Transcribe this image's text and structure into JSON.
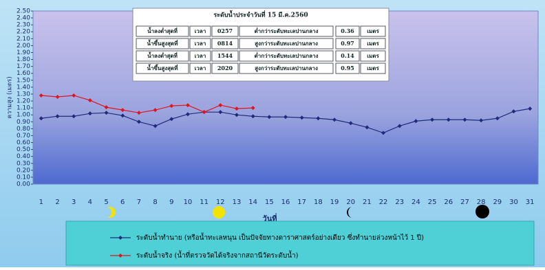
{
  "chart_data": {
    "type": "line",
    "y_label": "ความสูง (เมตร)",
    "x_label": "วันที่",
    "categories": [
      "1",
      "2",
      "3",
      "4",
      "5",
      "6",
      "7",
      "8",
      "9",
      "10",
      "11",
      "12",
      "13",
      "14",
      "15",
      "16",
      "17",
      "18",
      "19",
      "20",
      "21",
      "22",
      "23",
      "24",
      "25",
      "26",
      "27",
      "28",
      "29",
      "30",
      "31"
    ],
    "series": [
      {
        "name": "ระดับน้ำทำนาย (หรือน้ำทะเลหนุน เป็นปัจจัยทางดาราศาสตร์อย่างเดียว ซึ่งทำนายล่วงหน้าไว้ 1 ปี)",
        "color": "#1f2a7a",
        "values": [
          0.95,
          0.98,
          0.98,
          1.02,
          1.03,
          0.99,
          0.9,
          0.84,
          0.94,
          1.01,
          1.04,
          1.04,
          1.0,
          0.98,
          0.97,
          0.97,
          0.96,
          0.95,
          0.93,
          0.88,
          0.82,
          0.74,
          0.84,
          0.91,
          0.93,
          0.93,
          0.93,
          0.92,
          0.95,
          1.05,
          1.09
        ]
      },
      {
        "name": "ระดับน้ำจริง (น้ำที่ตรวจวัดได้จริงจากสถานีวัดระดับน้ำ)",
        "color": "#e0141e",
        "values": [
          1.28,
          1.26,
          1.28,
          1.21,
          1.11,
          1.07,
          1.03,
          1.07,
          1.13,
          1.14,
          1.04,
          1.14,
          1.09,
          1.1,
          null,
          null,
          null,
          null,
          null,
          null,
          null,
          null,
          null,
          null,
          null,
          null,
          null,
          null,
          null,
          null,
          null
        ]
      }
    ],
    "ylim": [
      0,
      2.5
    ],
    "yticks": [
      {
        "value": 0,
        "label": "0.00"
      },
      {
        "value": 0.1,
        "label": "0.10"
      },
      {
        "value": 0.2,
        "label": "0.20"
      },
      {
        "value": 0.3,
        "label": "0.30"
      },
      {
        "value": 0.4,
        "label": "0.40"
      },
      {
        "value": 0.5,
        "label": "0.50"
      },
      {
        "value": 0.6,
        "label": "0.60"
      },
      {
        "value": 0.7,
        "label": "0.70"
      },
      {
        "value": 0.8,
        "label": "0.80"
      },
      {
        "value": 0.9,
        "label": "0.90"
      },
      {
        "value": 1.0,
        "label": "1.00"
      },
      {
        "value": 1.1,
        "label": "1.10"
      },
      {
        "value": 1.2,
        "label": "1.20"
      },
      {
        "value": 1.3,
        "label": "1.30"
      },
      {
        "value": 1.4,
        "label": "1.40"
      },
      {
        "value": 1.5,
        "label": "1.50"
      },
      {
        "value": 1.6,
        "label": "1.60"
      },
      {
        "value": 1.7,
        "label": "1.70"
      },
      {
        "value": 1.8,
        "label": "1.80"
      },
      {
        "value": 1.9,
        "label": "1.90"
      },
      {
        "value": 2.0,
        "label": "2.00"
      },
      {
        "value": 2.1,
        "label": "2.10"
      },
      {
        "value": 2.2,
        "label": "2.20"
      },
      {
        "value": 2.3,
        "label": "2.30"
      },
      {
        "value": 2.4,
        "label": "2.40"
      },
      {
        "value": 2.5,
        "label": "2.50"
      }
    ],
    "info_table": {
      "title": "ระดับน้ำประจำวันที่ 15 มี.ค.2560",
      "rows": [
        [
          "น้ำลงต่ำสุดที่",
          "เวลา",
          "0257",
          "ต่ำกว่าระดับทะเลปานกลาง",
          "0.36",
          "เมตร"
        ],
        [
          "น้ำขึ้นสูงสุดที่",
          "เวลา",
          "0814",
          "สูงกว่าระดับทะเลปานกลาง",
          "0.97",
          "เมตร"
        ],
        [
          "น้ำลงต่ำสุดที่",
          "เวลา",
          "1544",
          "ต่ำกว่าระดับทะเลปานกลาง",
          "0.14",
          "เมตร"
        ],
        [
          "น้ำขึ้นสูงสุดที่",
          "เวลา",
          "2020",
          "สูงกว่าระดับทะเลปานกลาง",
          "0.95",
          "เมตร"
        ]
      ]
    }
  }
}
